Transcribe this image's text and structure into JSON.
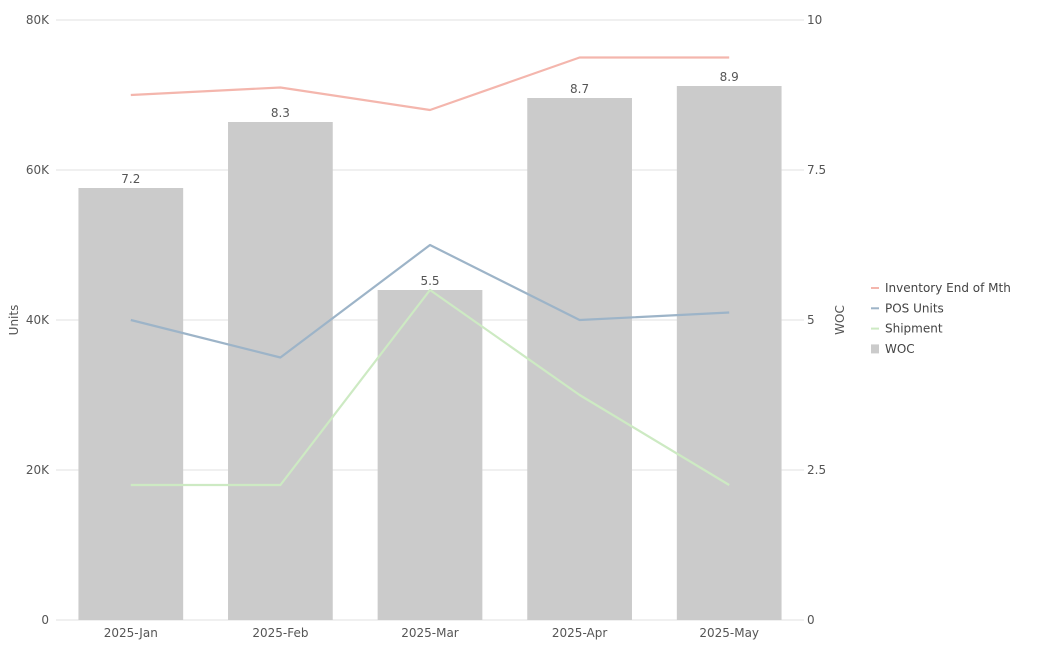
{
  "chart_data": {
    "type": "bar",
    "categories": [
      "2025-Jan",
      "2025-Feb",
      "2025-Mar",
      "2025-Apr",
      "2025-May"
    ],
    "bars": {
      "name": "WOC",
      "axis": "right",
      "values": [
        7.2,
        8.3,
        5.5,
        8.7,
        8.9
      ],
      "labels": [
        "7.2",
        "8.3",
        "5.5",
        "8.7",
        "8.9"
      ],
      "color": "#cbcbcb"
    },
    "lines": [
      {
        "name": "Inventory End of Mth",
        "axis": "left",
        "values": [
          70000,
          71000,
          68000,
          75000,
          75000
        ],
        "color": "#f4b6ad"
      },
      {
        "name": "POS Units",
        "axis": "left",
        "values": [
          40000,
          35000,
          50000,
          40000,
          41000
        ],
        "color": "#9db4c8"
      },
      {
        "name": "Shipment",
        "axis": "left",
        "values": [
          18000,
          18000,
          44000,
          30000,
          18000
        ],
        "color": "#cdeac3"
      }
    ],
    "left_axis": {
      "title": "Units",
      "range": [
        0,
        80000
      ],
      "ticks": [
        {
          "value": 0,
          "label": "0"
        },
        {
          "value": 20000,
          "label": "20K"
        },
        {
          "value": 40000,
          "label": "40K"
        },
        {
          "value": 60000,
          "label": "60K"
        },
        {
          "value": 80000,
          "label": "80K"
        }
      ]
    },
    "right_axis": {
      "title": "WOC",
      "range": [
        0,
        10
      ],
      "ticks": [
        {
          "value": 0,
          "label": "0"
        },
        {
          "value": 2.5,
          "label": "2.5"
        },
        {
          "value": 5,
          "label": "5"
        },
        {
          "value": 7.5,
          "label": "7.5"
        },
        {
          "value": 10,
          "label": "10"
        }
      ]
    },
    "grid": true,
    "legend_placement": "right"
  }
}
